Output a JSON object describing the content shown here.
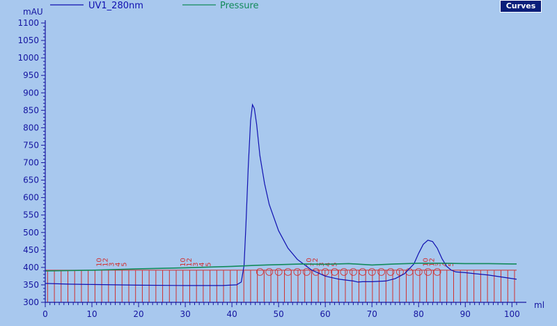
{
  "chart_data": {
    "type": "line",
    "ylabel": "mAU",
    "xlabel": "ml",
    "xlim": [
      0,
      101
    ],
    "ylim": [
      300,
      1100
    ],
    "x_ticks": [
      0,
      10,
      20,
      30,
      40,
      50,
      60,
      70,
      80,
      90,
      100
    ],
    "y_ticks": [
      300,
      350,
      400,
      450,
      500,
      550,
      600,
      650,
      700,
      750,
      800,
      850,
      900,
      950,
      1000,
      1050,
      1100
    ],
    "grid": false,
    "legend_position": "top",
    "series": [
      {
        "name": "UV1_280nm",
        "color": "#1010b0",
        "x": [
          0,
          5,
          10,
          20,
          30,
          38,
          41,
          42,
          42.6,
          43,
          43.5,
          44,
          44.4,
          44.8,
          45.3,
          46,
          47,
          48,
          50,
          52,
          54,
          57,
          60,
          63,
          66,
          67,
          68,
          70,
          73,
          75,
          77,
          79,
          80,
          81,
          82,
          83,
          84,
          85,
          86,
          87,
          88,
          90,
          92,
          95,
          98,
          101
        ],
        "y": [
          354,
          352,
          351,
          349,
          348,
          348,
          350,
          358,
          405,
          520,
          690,
          820,
          866,
          855,
          810,
          720,
          640,
          580,
          505,
          455,
          423,
          393,
          375,
          366,
          361,
          358,
          359,
          359,
          361,
          368,
          382,
          410,
          440,
          466,
          478,
          474,
          455,
          425,
          403,
          392,
          387,
          385,
          382,
          378,
          372,
          366
        ]
      },
      {
        "name": "Pressure",
        "color": "#128a5a",
        "x": [
          0,
          10,
          20,
          30,
          40,
          45,
          50,
          55,
          60,
          65,
          70,
          75,
          80,
          85,
          90,
          95,
          100,
          101
        ],
        "y": [
          390,
          392,
          396,
          399,
          403,
          406,
          408,
          410,
          409,
          411,
          407,
          410,
          412,
          412,
          411,
          411,
          410,
          410
        ]
      }
    ],
    "fraction_labels": [
      "10",
      "12",
      "3",
      "4",
      "5"
    ]
  },
  "ui": {
    "curves_button_label": "Curves"
  }
}
